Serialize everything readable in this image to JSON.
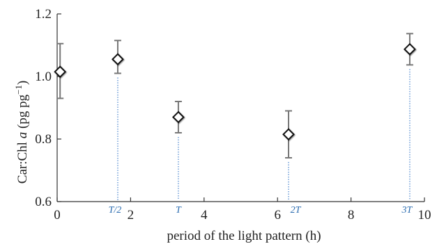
{
  "chart_data": {
    "type": "scatter",
    "title": "",
    "xlabel": "period of the light pattern (h)",
    "ylabel": "Car:Chl a (pg pg⁻¹)",
    "ylabel_parts": {
      "prefix": "Car:Chl ",
      "italic": "a",
      "suffix": " (pg pg",
      "sup": "−1",
      "close": ")"
    },
    "xlim": [
      0,
      10
    ],
    "ylim": [
      0.6,
      1.2
    ],
    "x_ticks": [
      0,
      2,
      4,
      6,
      8,
      10
    ],
    "y_ticks": [
      0.6,
      0.8,
      1.0,
      1.2
    ],
    "x_tick_labels": [
      "0",
      "2",
      "4",
      "6",
      "8",
      "10"
    ],
    "y_tick_labels": [
      "0.6",
      "0.8",
      "1.0",
      "1.2"
    ],
    "grid": false,
    "marker": "diamond",
    "series": [
      {
        "x": [
          0.08,
          1.65,
          3.3,
          6.3,
          9.6
        ],
        "y": [
          1.015,
          1.055,
          0.87,
          0.815,
          1.087
        ],
        "err_low": [
          0.085,
          0.045,
          0.05,
          0.075,
          0.05
        ],
        "err_high": [
          0.09,
          0.06,
          0.05,
          0.075,
          0.05
        ]
      }
    ],
    "period_markers": [
      {
        "label": "T/2",
        "x": 1.65
      },
      {
        "label": "T",
        "x": 3.3
      },
      {
        "label": "2T",
        "x": 6.3
      },
      {
        "label": "3T",
        "x": 9.6
      }
    ],
    "colors": {
      "marker_stroke": "#111111",
      "marker_fill": "#ffffff",
      "errorbar": "#777777",
      "period_line": "#8fb3e0",
      "period_label": "#2b6cb0",
      "axis": "#333333"
    }
  }
}
